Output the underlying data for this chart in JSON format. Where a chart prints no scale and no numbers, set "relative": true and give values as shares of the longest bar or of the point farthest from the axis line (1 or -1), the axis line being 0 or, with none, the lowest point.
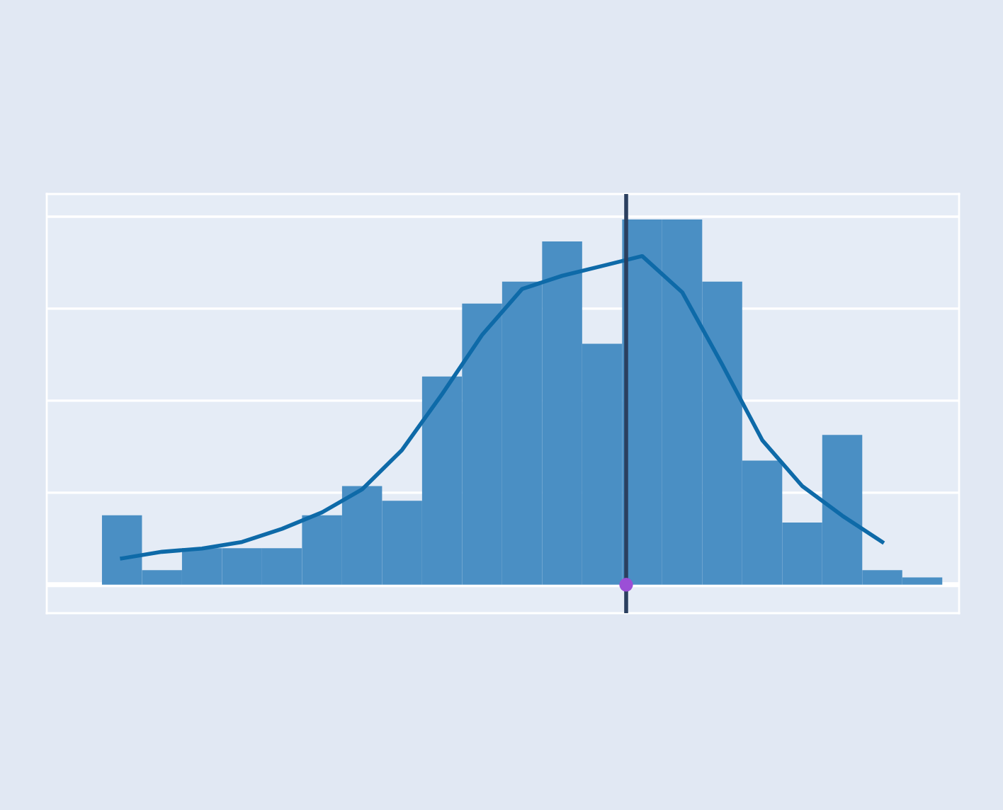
{
  "chart_data": [
    {
      "type": "bar",
      "relative": true,
      "grid": "y",
      "categories": [
        null,
        null,
        null,
        null,
        null,
        null,
        null,
        null,
        null,
        null,
        null,
        null,
        null,
        null,
        null,
        null,
        null,
        null,
        null,
        null,
        null
      ],
      "series": [
        {
          "color": "#4a8fc4",
          "values": [
            0.19,
            0.04,
            0.1,
            0.1,
            0.1,
            0.19,
            0.27,
            0.23,
            0.57,
            0.77,
            0.83,
            0.94,
            0.66,
            1.0,
            1.0,
            0.83,
            0.34,
            0.17,
            0.41,
            0.04,
            0.02
          ]
        }
      ]
    },
    {
      "type": "line",
      "relative": true,
      "categories": [
        null,
        null,
        null,
        null,
        null,
        null,
        null,
        null,
        null,
        null,
        null,
        null,
        null,
        null,
        null,
        null,
        null,
        null,
        null,
        null,
        null
      ],
      "series": [
        {
          "color": "#0e6aa8",
          "values": [
            0.08,
            0.1,
            0.11,
            0.13,
            0.17,
            0.22,
            0.29,
            0.41,
            0.58,
            0.76,
            0.9,
            0.94,
            0.97,
            1.0,
            0.89,
            0.67,
            0.44,
            0.3,
            0.21,
            0.13,
            null
          ]
        }
      ]
    }
  ]
}
